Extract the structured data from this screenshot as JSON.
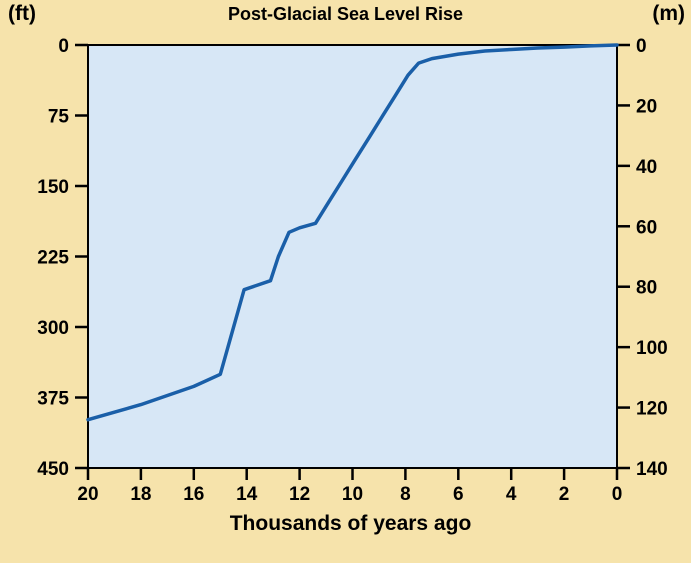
{
  "chart_data": {
    "type": "line",
    "title": "Post-Glacial Sea Level Rise",
    "xlabel": "Thousands of years ago",
    "x_axis": {
      "range": [
        20,
        0
      ],
      "ticks": [
        20,
        18,
        16,
        14,
        12,
        10,
        8,
        6,
        4,
        2,
        0
      ]
    },
    "y_left": {
      "unit_label": "(ft)",
      "unit": "ft",
      "range": [
        0,
        450
      ],
      "ticks": [
        0,
        75,
        150,
        225,
        300,
        375,
        450
      ],
      "direction": "down"
    },
    "y_right": {
      "unit_label": "(m)",
      "unit": "m",
      "range": [
        0,
        140
      ],
      "ticks": [
        0,
        20,
        40,
        60,
        80,
        100,
        120,
        140
      ],
      "direction": "down"
    },
    "series": [
      {
        "name": "sea-level-depth",
        "unit": "m below present sea level",
        "points": [
          [
            20,
            124
          ],
          [
            18,
            119
          ],
          [
            16,
            113
          ],
          [
            15,
            109
          ],
          [
            14.1,
            81
          ],
          [
            13.1,
            78
          ],
          [
            12.8,
            70
          ],
          [
            12.4,
            62
          ],
          [
            12.0,
            60.5
          ],
          [
            11.4,
            59
          ],
          [
            10.9,
            52
          ],
          [
            10.4,
            45
          ],
          [
            9.9,
            38
          ],
          [
            9.4,
            31
          ],
          [
            8.9,
            24
          ],
          [
            8.4,
            17
          ],
          [
            7.9,
            10
          ],
          [
            7.5,
            6
          ],
          [
            7.0,
            4.5
          ],
          [
            6.0,
            3
          ],
          [
            5.0,
            2
          ],
          [
            4.0,
            1.5
          ],
          [
            3.0,
            1
          ],
          [
            2.0,
            0.7
          ],
          [
            1.0,
            0.3
          ],
          [
            0,
            0
          ]
        ]
      }
    ],
    "colors": {
      "background": "#f6e3ab",
      "plot_background": "#d7e7f6",
      "line": "#1a5fa8",
      "text": "#000000",
      "axis": "#000000"
    }
  }
}
